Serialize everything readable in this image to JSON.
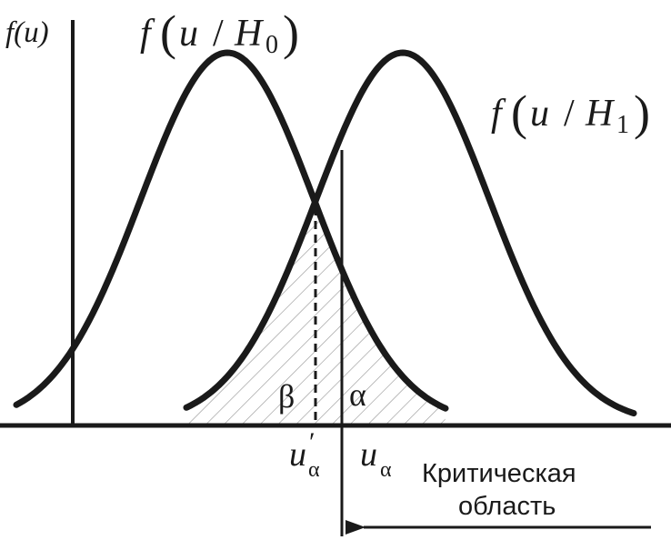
{
  "labels": {
    "y_axis": "f(u)",
    "h0_f": "f",
    "h0_u": "u",
    "h0_slash": "/",
    "h0_H": "H",
    "h0_sub": "0",
    "h1_f": "f",
    "h1_u": "u",
    "h1_slash": "/",
    "h1_H": "H",
    "h1_sub": "1",
    "beta": "β",
    "alpha": "α",
    "u_alpha_prime_u": "u",
    "u_alpha_prime_sub": "α",
    "u_alpha_prime_mark": "′",
    "u_alpha_u": "u",
    "u_alpha_sub": "α",
    "critical_line1": "Критическая",
    "critical_line2": "область"
  },
  "colors": {
    "stroke": "#1a1a1a",
    "hatch": "#9a9a9a"
  }
}
